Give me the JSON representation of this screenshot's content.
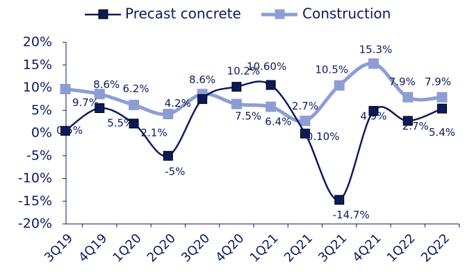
{
  "chart_data": {
    "type": "line",
    "categories": [
      "3Q19",
      "4Q19",
      "1Q20",
      "2Q20",
      "3Q20",
      "4Q20",
      "1Q21",
      "2Q21",
      "3Q21",
      "4Q21",
      "1Q22",
      "2Q22"
    ],
    "series": [
      {
        "name": "Precast concrete",
        "color": "#0c1a5c",
        "values": [
          0.5,
          5.5,
          2.1,
          -5,
          7.5,
          10.2,
          10.6,
          -0.1,
          -14.7,
          4.9,
          2.7,
          5.4
        ],
        "value_labels": [
          "0.5%",
          "5.5%",
          "2.1%",
          "-5%",
          "7.5%",
          "10.2%",
          "10.60%",
          "-0.10%",
          "-14.7%",
          "4.9%",
          "2.7%",
          "5.4%"
        ]
      },
      {
        "name": "Construction",
        "color": "#8d9dd4",
        "values": [
          9.7,
          8.6,
          6.2,
          4.2,
          8.6,
          6.4,
          5.8,
          2.7,
          10.5,
          15.3,
          7.9,
          7.9
        ],
        "value_labels": [
          "9.7%",
          "8.6%",
          "6.2%",
          "4.2%",
          "8.6%",
          "6.4%",
          null,
          "2.7%",
          "10.5%",
          "15.3%",
          "7.9%",
          "7.9%"
        ]
      }
    ],
    "ylim": [
      -20,
      20
    ],
    "yticks": [
      {
        "value": -20,
        "label": "-20%"
      },
      {
        "value": -15,
        "label": "-15%"
      },
      {
        "value": -10,
        "label": "-10%"
      },
      {
        "value": -5,
        "label": "-5%"
      },
      {
        "value": 0,
        "label": "0%"
      },
      {
        "value": 5,
        "label": "5%"
      },
      {
        "value": 10,
        "label": "10%"
      },
      {
        "value": 15,
        "label": "15%"
      },
      {
        "value": 20,
        "label": "20%"
      }
    ],
    "legend": "top"
  }
}
